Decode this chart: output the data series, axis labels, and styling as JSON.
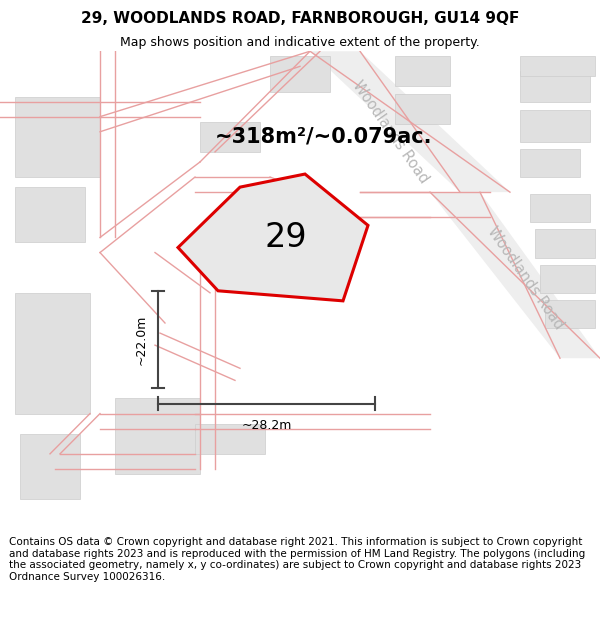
{
  "title": "29, WOODLANDS ROAD, FARNBOROUGH, GU14 9QF",
  "subtitle": "Map shows position and indicative extent of the property.",
  "footer": "Contains OS data © Crown copyright and database right 2021. This information is subject to Crown copyright and database rights 2023 and is reproduced with the permission of HM Land Registry. The polygons (including the associated geometry, namely x, y co-ordinates) are subject to Crown copyright and database rights 2023 Ordnance Survey 100026316.",
  "area_label": "~318m²/~0.079ac.",
  "number_label": "29",
  "width_label": "~28.2m",
  "height_label": "~22.0m",
  "bg_color": "#ffffff",
  "map_bg": "#f8f8f8",
  "road_line_color": "#e8a0a0",
  "building_fill": "#e0e0e0",
  "building_edge": "#cccccc",
  "road_fill": "#eeeeee",
  "plot_fill": "#e8e8e8",
  "plot_edge": "#dd0000",
  "road_label_color": "#b8b8b8",
  "dim_line_color": "#444444",
  "title_fontsize": 11,
  "subtitle_fontsize": 9,
  "footer_fontsize": 7.5,
  "area_fontsize": 15,
  "number_fontsize": 24,
  "road_label_fontsize": 10.5,
  "dim_fontsize": 9,
  "figsize": [
    6.0,
    6.25
  ],
  "dpi": 100
}
